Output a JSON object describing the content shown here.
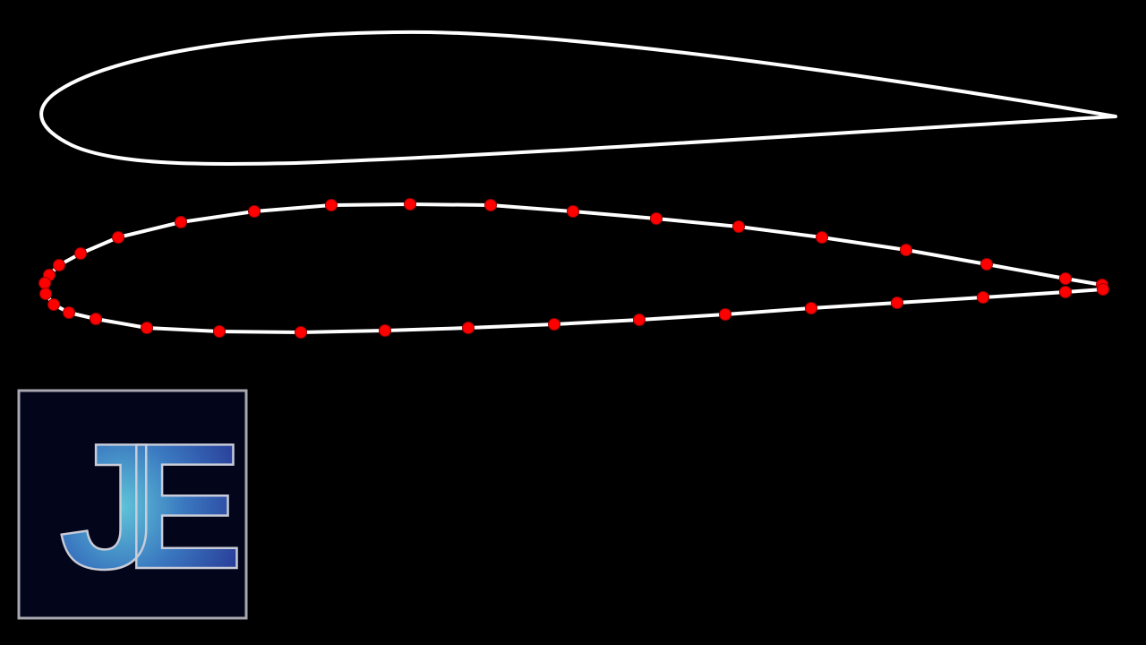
{
  "logo": {
    "text": "JE"
  }
}
